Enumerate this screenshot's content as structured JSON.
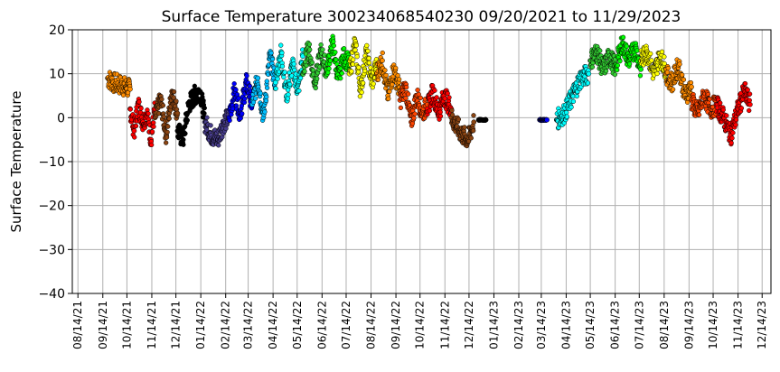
{
  "chart_data": {
    "type": "scatter",
    "title": "Surface Temperature 300234068540230  09/20/2021 to 11/29/2023",
    "ylabel": "Surface Temperature",
    "xlabel": "",
    "ylim": [
      -40,
      20
    ],
    "yticks": [
      -40,
      -30,
      -20,
      -10,
      0,
      10,
      20
    ],
    "xlim": [
      "2021-08-07",
      "2023-12-25"
    ],
    "x_tick_dates": [
      "2021-08-14",
      "2021-09-14",
      "2021-10-14",
      "2021-11-14",
      "2021-12-14",
      "2022-01-14",
      "2022-02-14",
      "2022-03-14",
      "2022-04-14",
      "2022-05-14",
      "2022-06-14",
      "2022-07-14",
      "2022-08-14",
      "2022-09-14",
      "2022-10-14",
      "2022-11-14",
      "2022-12-14",
      "2023-01-14",
      "2023-02-14",
      "2023-03-14",
      "2023-04-14",
      "2023-05-14",
      "2023-06-14",
      "2023-07-14",
      "2023-08-14",
      "2023-09-14",
      "2023-10-14",
      "2023-11-14",
      "2023-12-14"
    ],
    "x_tick_labels": [
      "08/14/21",
      "09/14/21",
      "10/14/21",
      "11/14/21",
      "12/14/21",
      "01/14/22",
      "02/14/22",
      "03/14/22",
      "04/14/22",
      "05/14/22",
      "06/14/22",
      "07/14/22",
      "08/14/22",
      "09/14/22",
      "10/14/22",
      "11/14/22",
      "12/14/22",
      "01/14/23",
      "02/14/23",
      "03/14/23",
      "04/14/23",
      "05/14/23",
      "06/14/23",
      "07/14/23",
      "08/14/23",
      "09/14/23",
      "10/14/23",
      "11/14/23",
      "12/14/23"
    ],
    "grid": true,
    "marker_edge_color": "#000000",
    "series": [
      {
        "color": "#ff8c00",
        "x": [
          "2021-09-20",
          "2021-09-27",
          "2021-10-05",
          "2021-10-12",
          "2021-10-18"
        ],
        "y": [
          9,
          8,
          7.5,
          7,
          6.5
        ]
      },
      {
        "color": "#ff0000",
        "x": [
          "2021-10-18",
          "2021-10-23",
          "2021-10-28",
          "2021-11-03",
          "2021-11-08",
          "2021-11-13",
          "2021-11-18"
        ],
        "y": [
          2,
          -3,
          3,
          -1,
          1,
          -5,
          2
        ]
      },
      {
        "color": "#8b4513",
        "x": [
          "2021-11-18",
          "2021-11-25",
          "2021-12-02",
          "2021-12-09",
          "2021-12-16"
        ],
        "y": [
          0,
          4,
          -4,
          6,
          1
        ]
      },
      {
        "color": "#000000",
        "x": [
          "2021-12-16",
          "2021-12-23",
          "2021-12-30",
          "2022-01-06",
          "2022-01-13",
          "2022-01-19"
        ],
        "y": [
          -3,
          -5,
          3,
          5,
          6,
          0
        ]
      },
      {
        "color": "#483d8b",
        "x": [
          "2022-01-19",
          "2022-01-27",
          "2022-02-04",
          "2022-02-12",
          "2022-02-18"
        ],
        "y": [
          -1,
          -4,
          -5,
          -1,
          0
        ]
      },
      {
        "color": "#0000ff",
        "x": [
          "2022-02-18",
          "2022-02-25",
          "2022-03-04",
          "2022-03-12",
          "2022-03-19"
        ],
        "y": [
          0,
          6,
          1,
          8,
          3
        ]
      },
      {
        "color": "#00bfff",
        "x": [
          "2022-03-19",
          "2022-03-26",
          "2022-04-02",
          "2022-04-10",
          "2022-04-17"
        ],
        "y": [
          3,
          9,
          0,
          14,
          8
        ]
      },
      {
        "color": "#00ffff",
        "x": [
          "2022-04-17",
          "2022-04-24",
          "2022-05-01",
          "2022-05-08",
          "2022-05-15",
          "2022-05-21"
        ],
        "y": [
          8,
          15,
          5,
          12,
          6,
          14
        ]
      },
      {
        "color": "#32cd32",
        "x": [
          "2022-05-21",
          "2022-05-28",
          "2022-06-05",
          "2022-06-13",
          "2022-06-20"
        ],
        "y": [
          10,
          16,
          8,
          15,
          10
        ]
      },
      {
        "color": "#00ff00",
        "x": [
          "2022-06-20",
          "2022-06-27",
          "2022-07-04",
          "2022-07-11",
          "2022-07-18"
        ],
        "y": [
          11,
          17,
          9,
          14,
          12
        ]
      },
      {
        "color": "#ffff00",
        "x": [
          "2022-07-18",
          "2022-07-25",
          "2022-08-01",
          "2022-08-08",
          "2022-08-15",
          "2022-08-21"
        ],
        "y": [
          10,
          17,
          6,
          15,
          8,
          12
        ]
      },
      {
        "color": "#ff8c00",
        "x": [
          "2022-08-21",
          "2022-08-28",
          "2022-09-04",
          "2022-09-11",
          "2022-09-19"
        ],
        "y": [
          10,
          13,
          5,
          11,
          6
        ]
      },
      {
        "color": "#ff4500",
        "x": [
          "2022-09-19",
          "2022-09-26",
          "2022-10-03",
          "2022-10-10",
          "2022-10-17",
          "2022-10-23"
        ],
        "y": [
          4,
          7,
          -1,
          5,
          1,
          3
        ]
      },
      {
        "color": "#ff0000",
        "x": [
          "2022-10-23",
          "2022-10-30",
          "2022-11-06",
          "2022-11-13",
          "2022-11-22"
        ],
        "y": [
          2,
          6,
          1,
          5,
          2
        ]
      },
      {
        "color": "#8b4513",
        "x": [
          "2022-11-22",
          "2022-11-29",
          "2022-12-06",
          "2022-12-13",
          "2022-12-20"
        ],
        "y": [
          0,
          -2,
          -4,
          -5,
          -1
        ]
      },
      {
        "color": "#000000",
        "x": [
          "2022-12-26",
          "2022-12-29",
          "2023-01-01",
          "2023-01-04"
        ],
        "y": [
          -0.5,
          -0.5,
          -0.5,
          -0.5
        ]
      },
      {
        "color": "#0000ff",
        "x": [
          "2023-03-12",
          "2023-03-15",
          "2023-03-18",
          "2023-03-21"
        ],
        "y": [
          -0.5,
          -0.5,
          -0.5,
          -0.5
        ]
      },
      {
        "color": "#00ffff",
        "x": [
          "2023-04-02",
          "2023-04-12",
          "2023-04-22",
          "2023-05-02",
          "2023-05-12"
        ],
        "y": [
          -0.5,
          1,
          5,
          9,
          10
        ]
      },
      {
        "color": "#32cd32",
        "x": [
          "2023-05-14",
          "2023-05-22",
          "2023-05-30",
          "2023-06-07",
          "2023-06-15"
        ],
        "y": [
          13,
          15,
          11,
          14,
          11
        ]
      },
      {
        "color": "#00ff00",
        "x": [
          "2023-06-15",
          "2023-06-23",
          "2023-07-01",
          "2023-07-09",
          "2023-07-16"
        ],
        "y": [
          12,
          17,
          13,
          16,
          11
        ]
      },
      {
        "color": "#ffff00",
        "x": [
          "2023-07-16",
          "2023-07-24",
          "2023-08-01",
          "2023-08-09",
          "2023-08-16"
        ],
        "y": [
          13,
          15,
          10,
          14,
          11
        ]
      },
      {
        "color": "#ff8c00",
        "x": [
          "2023-08-16",
          "2023-08-24",
          "2023-09-01",
          "2023-09-09",
          "2023-09-17"
        ],
        "y": [
          10,
          8,
          12,
          5,
          7
        ]
      },
      {
        "color": "#ff4500",
        "x": [
          "2023-09-17",
          "2023-09-25",
          "2023-10-03",
          "2023-10-11",
          "2023-10-18"
        ],
        "y": [
          4,
          1,
          5,
          2,
          3
        ]
      },
      {
        "color": "#ff0000",
        "x": [
          "2023-10-18",
          "2023-10-27",
          "2023-11-05",
          "2023-11-14",
          "2023-11-22",
          "2023-11-29"
        ],
        "y": [
          3,
          0,
          -4,
          2,
          6,
          3
        ]
      }
    ]
  }
}
